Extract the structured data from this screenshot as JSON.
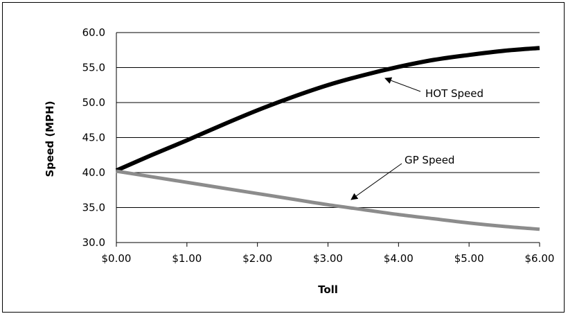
{
  "chart_data": {
    "type": "line",
    "title": "",
    "xlabel": "Toll",
    "ylabel": "Speed (MPH)",
    "xlim": [
      0,
      6
    ],
    "ylim": [
      30,
      60
    ],
    "x_ticks": [
      0,
      1,
      2,
      3,
      4,
      5,
      6
    ],
    "x_tick_labels": [
      "$0.00",
      "$1.00",
      "$2.00",
      "$3.00",
      "$4.00",
      "$5.00",
      "$6.00"
    ],
    "y_ticks": [
      30,
      35,
      40,
      45,
      50,
      55,
      60
    ],
    "y_tick_labels": [
      "30.0",
      "35.0",
      "40.0",
      "45.0",
      "50.0",
      "55.0",
      "60.0"
    ],
    "grid": "horizontal",
    "legend": "none",
    "x": [
      0,
      0.5,
      1,
      1.5,
      2,
      2.5,
      3,
      3.5,
      4,
      4.5,
      5,
      5.5,
      6
    ],
    "series": [
      {
        "name": "HOT Speed",
        "color": "#000000",
        "values": [
          40.3,
          42.5,
          44.6,
          46.8,
          48.9,
          50.8,
          52.5,
          53.9,
          55.1,
          56.1,
          56.8,
          57.4,
          57.8
        ]
      },
      {
        "name": "GP Speed",
        "color": "#8c8c8c",
        "values": [
          40.2,
          39.4,
          38.6,
          37.8,
          37.0,
          36.2,
          35.4,
          34.7,
          34.0,
          33.4,
          32.8,
          32.3,
          31.9
        ]
      }
    ],
    "annotations": [
      {
        "text": "HOT Speed",
        "series": 0
      },
      {
        "text": "GP Speed",
        "series": 1
      }
    ]
  }
}
